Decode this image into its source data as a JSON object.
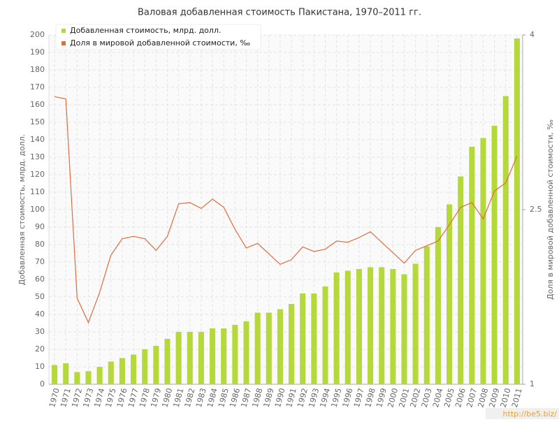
{
  "chart_data": {
    "type": "bar-line",
    "title": "Валовая добавленная стоимость Пакистана, 1970–2011 гг.",
    "y_label": "Добавленная стоимость, млрд. долл.",
    "y2_label": "Доля в мировой добавленной стоимости, ‰",
    "watermark": "http://be5.biz/",
    "grid": true,
    "legend": "top-left",
    "categories": [
      "1970",
      "1971",
      "1972",
      "1973",
      "1974",
      "1975",
      "1976",
      "1977",
      "1978",
      "1979",
      "1980",
      "1981",
      "1982",
      "1983",
      "1984",
      "1985",
      "1986",
      "1987",
      "1988",
      "1989",
      "1990",
      "1991",
      "1992",
      "1993",
      "1994",
      "1995",
      "1996",
      "1997",
      "1998",
      "1999",
      "2000",
      "2001",
      "2002",
      "2003",
      "2004",
      "2005",
      "2006",
      "2007",
      "2008",
      "2009",
      "2010",
      "2011"
    ],
    "series": [
      {
        "name": "Добавленная стоимость, млрд. долл.",
        "type": "bar",
        "color": "#b5d93b",
        "values": [
          11,
          12,
          7,
          7.5,
          10,
          13,
          15,
          17,
          20,
          22,
          26,
          30,
          30,
          30,
          32,
          32,
          34,
          36,
          41,
          41,
          43,
          46,
          52,
          52,
          56,
          64,
          65,
          66,
          67,
          67,
          66,
          63,
          69,
          79,
          90,
          103,
          119,
          136,
          141,
          148,
          165,
          198
        ]
      },
      {
        "name": "Доля в мировой добавленной стоимости, ‰",
        "type": "line",
        "color": "#e06c3c",
        "axis": "y2",
        "values": [
          3.47,
          3.45,
          1.74,
          1.53,
          1.79,
          2.11,
          2.25,
          2.27,
          2.25,
          2.15,
          2.27,
          2.55,
          2.56,
          2.51,
          2.59,
          2.52,
          2.33,
          2.17,
          2.21,
          2.12,
          2.03,
          2.07,
          2.18,
          2.14,
          2.16,
          2.23,
          2.22,
          2.26,
          2.31,
          2.22,
          2.13,
          2.04,
          2.15,
          2.19,
          2.23,
          2.37,
          2.52,
          2.56,
          2.42,
          2.66,
          2.73,
          2.96
        ]
      }
    ],
    "ylim": [
      0,
      200
    ],
    "yticks": [
      0,
      10,
      20,
      30,
      40,
      50,
      60,
      70,
      80,
      90,
      100,
      110,
      120,
      130,
      140,
      150,
      160,
      170,
      180,
      190,
      200
    ],
    "y2lim": [
      1,
      4
    ],
    "y2ticks": [
      1,
      2.5,
      4
    ]
  }
}
